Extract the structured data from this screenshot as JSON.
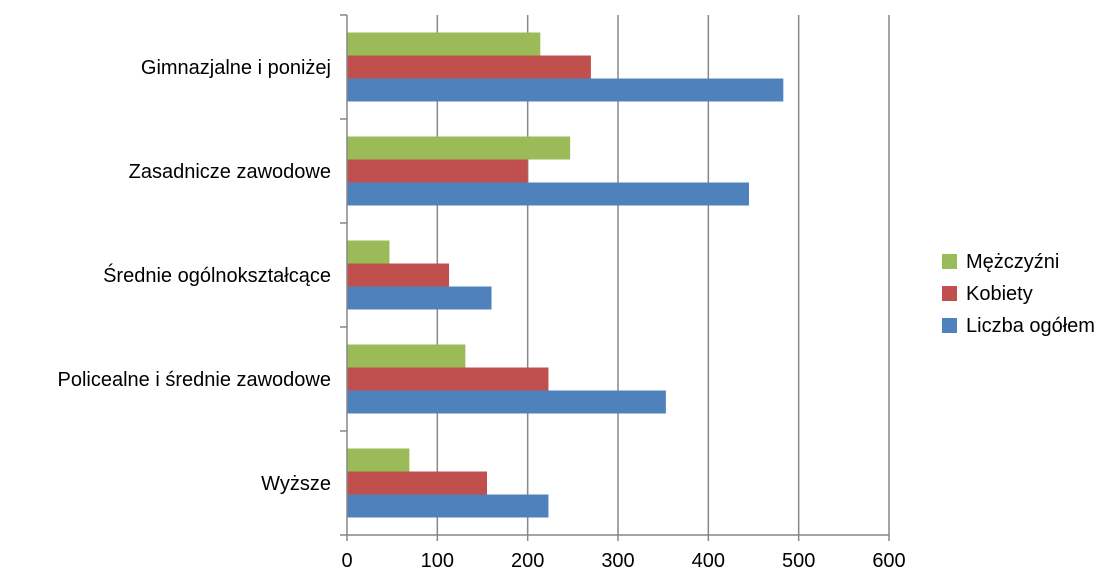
{
  "chart_data": {
    "type": "bar",
    "orientation": "horizontal",
    "categories": [
      "Gimnazjalne i poniżej",
      "Zasadnicze zawodowe",
      "Średnie ogólnokształcące",
      "Policealne i średnie zawodowe",
      "Wyższe"
    ],
    "series": [
      {
        "name": "Liczba ogółem",
        "color": "#4F81BD",
        "values": [
          483,
          445,
          160,
          353,
          223
        ]
      },
      {
        "name": "Kobiety",
        "color": "#C0504D",
        "values": [
          270,
          200,
          113,
          223,
          155
        ]
      },
      {
        "name": "Mężczyźni",
        "color": "#9BBB59",
        "values": [
          214,
          247,
          47,
          131,
          69
        ]
      }
    ],
    "title": "",
    "xlabel": "",
    "ylabel": "",
    "xlim": [
      0,
      600
    ],
    "xticks": [
      "0",
      "100",
      "200",
      "300",
      "400",
      "500",
      "600"
    ],
    "grid": "vertical major gridlines",
    "legend_position": "right",
    "legend_order": [
      "Mężczyźni",
      "Kobiety",
      "Liczba ogółem"
    ],
    "gridline_color": "#878787",
    "axis_color": "#878787"
  }
}
